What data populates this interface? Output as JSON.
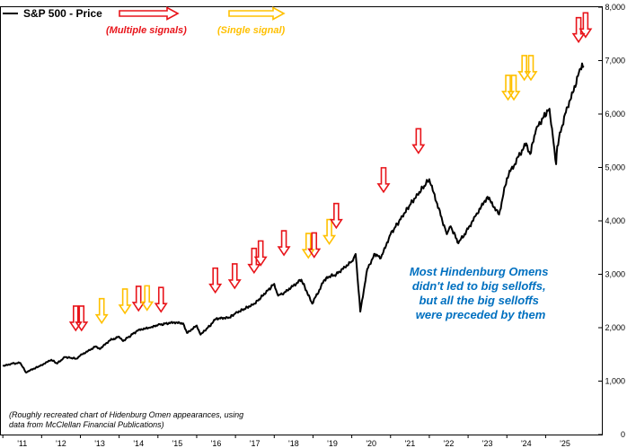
{
  "chart_data": {
    "type": "line",
    "title": "",
    "xlabel": "",
    "ylabel": "",
    "x_tick_labels": [
      "'11",
      "'12",
      "'13",
      "'14",
      "'15",
      "'16",
      "'17",
      "'18",
      "'19",
      "'20",
      "'21",
      "'22",
      "'23",
      "'24",
      "'25"
    ],
    "y_tick_labels": [
      "0",
      "1,000",
      "2,000",
      "3,000",
      "4,000",
      "5,000",
      "6,000",
      "7,000",
      "8,000"
    ],
    "ylim": [
      0,
      8000
    ],
    "xlim": [
      2010.95,
      2026.45
    ],
    "y_axis_side": "right",
    "grid": false,
    "legend_placement": "top-left",
    "series": [
      {
        "name": "S&P 500 - Price",
        "color": "#000000",
        "x": [
          2011.0,
          2011.25,
          2011.45,
          2011.6,
          2011.7,
          2011.85,
          2012.0,
          2012.25,
          2012.4,
          2012.6,
          2012.9,
          2013.0,
          2013.4,
          2013.5,
          2013.75,
          2014.0,
          2014.1,
          2014.5,
          2014.8,
          2015.0,
          2015.4,
          2015.65,
          2015.75,
          2016.0,
          2016.1,
          2016.4,
          2016.5,
          2016.85,
          2017.0,
          2017.5,
          2018.0,
          2018.1,
          2018.25,
          2018.7,
          2018.98,
          2019.3,
          2019.4,
          2019.6,
          2020.0,
          2020.1,
          2020.22,
          2020.4,
          2020.6,
          2020.75,
          2021.0,
          2021.5,
          2022.0,
          2022.45,
          2022.55,
          2022.75,
          2023.0,
          2023.2,
          2023.5,
          2023.8,
          2024.0,
          2024.3,
          2024.5,
          2024.6,
          2024.75,
          2024.95,
          2025.1,
          2025.27,
          2025.3,
          2025.5,
          2025.7,
          2025.9,
          2025.98
        ],
        "values": [
          1280,
          1330,
          1340,
          1160,
          1200,
          1250,
          1300,
          1400,
          1330,
          1450,
          1420,
          1480,
          1650,
          1600,
          1760,
          1830,
          1750,
          1960,
          2000,
          2050,
          2100,
          2080,
          1900,
          2040,
          1870,
          2080,
          2170,
          2190,
          2270,
          2450,
          2820,
          2600,
          2650,
          2900,
          2450,
          2900,
          2950,
          3000,
          3240,
          3380,
          2300,
          3100,
          3380,
          3300,
          3750,
          4300,
          4780,
          3750,
          3900,
          3580,
          3850,
          4100,
          4450,
          4120,
          4800,
          5200,
          5450,
          5250,
          5700,
          5950,
          6100,
          5060,
          5400,
          6000,
          6400,
          6850,
          6900
        ]
      }
    ],
    "signals": {
      "multiple_label": "(Multiple signals)",
      "single_label": "(Single signal)",
      "multiple_color": "#e8141a",
      "single_color": "#ffc000",
      "events": [
        {
          "x": 2012.88,
          "y": 1950,
          "type": "multiple"
        },
        {
          "x": 2013.03,
          "y": 1950,
          "type": "multiple"
        },
        {
          "x": 2013.55,
          "y": 2090,
          "type": "single"
        },
        {
          "x": 2014.15,
          "y": 2270,
          "type": "single"
        },
        {
          "x": 2014.5,
          "y": 2320,
          "type": "multiple"
        },
        {
          "x": 2014.72,
          "y": 2330,
          "type": "single"
        },
        {
          "x": 2015.08,
          "y": 2300,
          "type": "multiple"
        },
        {
          "x": 2016.48,
          "y": 2660,
          "type": "multiple"
        },
        {
          "x": 2016.98,
          "y": 2740,
          "type": "multiple"
        },
        {
          "x": 2017.48,
          "y": 3030,
          "type": "multiple"
        },
        {
          "x": 2017.65,
          "y": 3170,
          "type": "multiple"
        },
        {
          "x": 2018.25,
          "y": 3360,
          "type": "multiple"
        },
        {
          "x": 2018.88,
          "y": 3310,
          "type": "single"
        },
        {
          "x": 2019.03,
          "y": 3320,
          "type": "multiple"
        },
        {
          "x": 2019.42,
          "y": 3570,
          "type": "single"
        },
        {
          "x": 2019.6,
          "y": 3870,
          "type": "multiple"
        },
        {
          "x": 2020.82,
          "y": 4540,
          "type": "multiple"
        },
        {
          "x": 2021.72,
          "y": 5270,
          "type": "multiple"
        },
        {
          "x": 2024.03,
          "y": 6270,
          "type": "single"
        },
        {
          "x": 2024.18,
          "y": 6270,
          "type": "single"
        },
        {
          "x": 2024.45,
          "y": 6640,
          "type": "single"
        },
        {
          "x": 2024.62,
          "y": 6640,
          "type": "single"
        },
        {
          "x": 2025.85,
          "y": 7350,
          "type": "multiple"
        },
        {
          "x": 2026.03,
          "y": 7440,
          "type": "multiple"
        }
      ]
    },
    "annotations": [
      "Most Hindenburg Omens",
      "didn't led to big selloffs,",
      "but all the big selloffs",
      "were preceded by them"
    ],
    "source_note": [
      "(Roughly recreated chart of Hidenburg Omen appearances, using",
      "data from McClellan Financial Publications)"
    ]
  }
}
